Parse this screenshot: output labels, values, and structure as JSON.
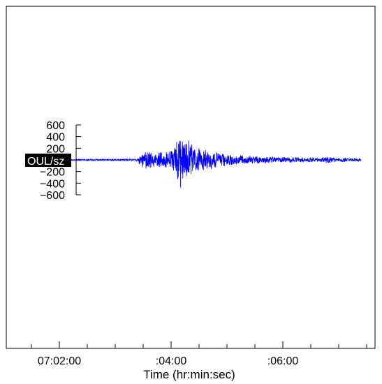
{
  "chart_data": {
    "type": "line",
    "title": "",
    "station_label": "OUL/sz",
    "xlabel": "Time (hr:min:sec)",
    "ylabel": "",
    "x_ticks": [
      {
        "value": 7.0,
        "label": "07:02:00"
      },
      {
        "value": 9.0,
        "label": ":04:00"
      },
      {
        "value": 11.0,
        "label": ":06:00"
      }
    ],
    "x_minor_ticks": [
      6.5,
      7.0,
      7.5,
      8.0,
      8.5,
      9.0,
      9.5,
      10.0,
      10.5,
      11.0,
      11.5,
      12.0,
      12.5
    ],
    "y_ticks": [
      {
        "value": 600,
        "label": "600"
      },
      {
        "value": 400,
        "label": "400"
      },
      {
        "value": 200,
        "label": "200"
      },
      {
        "value": 0,
        "label": ""
      },
      {
        "value": -200,
        "label": "−200"
      },
      {
        "value": -400,
        "label": "−400"
      },
      {
        "value": -600,
        "label": "−600"
      }
    ],
    "xlim": [
      6.05,
      12.65
    ],
    "ylim": [
      -600,
      600
    ],
    "series": [
      {
        "color": "#0000ff",
        "t_start": 6.5,
        "t_end": 12.4,
        "envelope": [
          {
            "t": 6.5,
            "amp": 15
          },
          {
            "t": 7.5,
            "amp": 18
          },
          {
            "t": 8.4,
            "amp": 20
          },
          {
            "t": 8.45,
            "amp": 120
          },
          {
            "t": 8.55,
            "amp": 180
          },
          {
            "t": 8.7,
            "amp": 140
          },
          {
            "t": 8.95,
            "amp": 160
          },
          {
            "t": 9.05,
            "amp": 300
          },
          {
            "t": 9.15,
            "amp": 480
          },
          {
            "t": 9.2,
            "amp": 600
          },
          {
            "t": 9.3,
            "amp": 380
          },
          {
            "t": 9.5,
            "amp": 220
          },
          {
            "t": 10.0,
            "amp": 110
          },
          {
            "t": 10.5,
            "amp": 70
          },
          {
            "t": 11.0,
            "amp": 55
          },
          {
            "t": 11.6,
            "amp": 40
          },
          {
            "t": 11.8,
            "amp": 70
          },
          {
            "t": 12.0,
            "amp": 40
          },
          {
            "t": 12.4,
            "amp": 30
          }
        ]
      }
    ]
  }
}
